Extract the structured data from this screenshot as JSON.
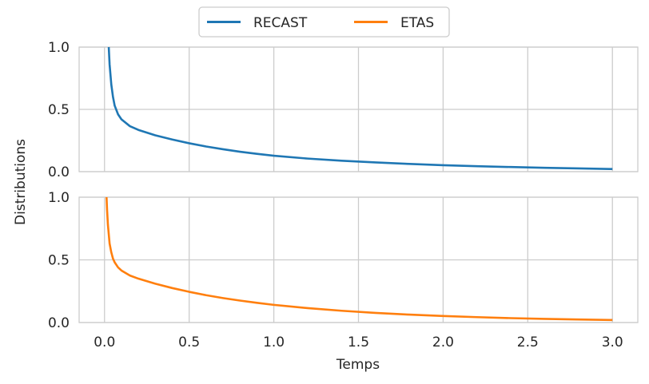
{
  "chart_data": {
    "type": "line",
    "xlabel": "Temps",
    "ylabel": "Distributions",
    "xlim": [
      -0.15,
      3.15
    ],
    "ylim": [
      0,
      1
    ],
    "xticks": [
      "0.0",
      "0.5",
      "1.0",
      "1.5",
      "2.0",
      "2.5",
      "3.0"
    ],
    "yticks": [
      "0.0",
      "0.5",
      "1.0"
    ],
    "grid": true,
    "legend": {
      "placement": "top-center",
      "columns": 2
    },
    "series": [
      {
        "name": "RECAST",
        "color": "#1f77b4",
        "x": [
          0.025,
          0.03,
          0.04,
          0.05,
          0.06,
          0.08,
          0.1,
          0.15,
          0.2,
          0.3,
          0.4,
          0.5,
          0.6,
          0.7,
          0.8,
          0.9,
          1.0,
          1.2,
          1.4,
          1.6,
          1.8,
          2.0,
          2.2,
          2.4,
          2.6,
          2.8,
          3.0
        ],
        "y": [
          1.0,
          0.86,
          0.7,
          0.6,
          0.53,
          0.46,
          0.42,
          0.365,
          0.335,
          0.292,
          0.258,
          0.228,
          0.202,
          0.18,
          0.16,
          0.143,
          0.128,
          0.105,
          0.088,
          0.074,
          0.062,
          0.052,
          0.044,
          0.037,
          0.031,
          0.026,
          0.021
        ]
      },
      {
        "name": "ETAS",
        "color": "#ff7f0e",
        "x": [
          0.012,
          0.015,
          0.02,
          0.03,
          0.04,
          0.05,
          0.06,
          0.08,
          0.1,
          0.15,
          0.2,
          0.3,
          0.4,
          0.5,
          0.6,
          0.7,
          0.8,
          0.9,
          1.0,
          1.2,
          1.4,
          1.6,
          1.8,
          2.0,
          2.2,
          2.4,
          2.6,
          2.8,
          3.0
        ],
        "y": [
          1.0,
          0.9,
          0.78,
          0.63,
          0.56,
          0.51,
          0.48,
          0.44,
          0.415,
          0.375,
          0.35,
          0.31,
          0.275,
          0.245,
          0.218,
          0.195,
          0.175,
          0.157,
          0.141,
          0.115,
          0.094,
          0.077,
          0.063,
          0.052,
          0.043,
          0.035,
          0.029,
          0.024,
          0.02
        ]
      }
    ]
  }
}
